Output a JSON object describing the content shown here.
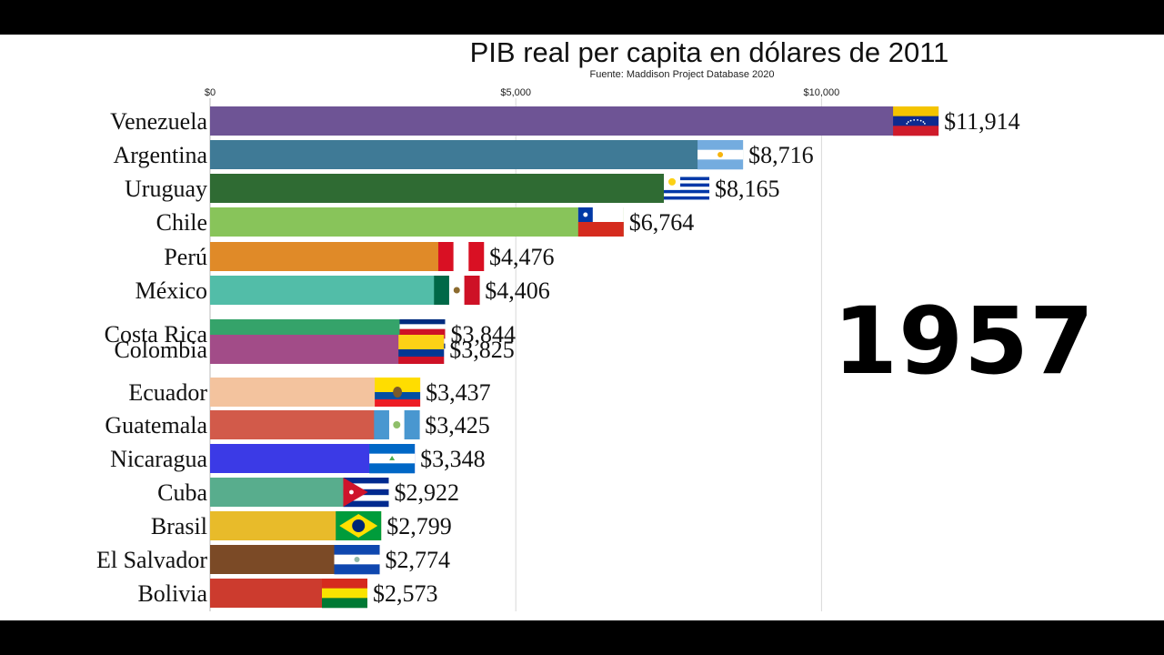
{
  "chart_data": {
    "type": "bar",
    "orientation": "horizontal",
    "title": "PIB real per capita en dólares de 2011",
    "subtitle": "Fuente: Maddison Project Database 2020",
    "year": "1957",
    "xlim": [
      0,
      12000
    ],
    "xticks": [
      {
        "value": 0,
        "label": "$0"
      },
      {
        "value": 5000,
        "label": "$5,000"
      },
      {
        "value": 10000,
        "label": "$10,000"
      }
    ],
    "grid": true,
    "bars": [
      {
        "category": "Venezuela",
        "value": 11914,
        "label": "$11,914",
        "color": "#6e5495",
        "flag": "venezuela"
      },
      {
        "category": "Argentina",
        "value": 8716,
        "label": "$8,716",
        "color": "#3f7a96",
        "flag": "argentina"
      },
      {
        "category": "Uruguay",
        "value": 8165,
        "label": "$8,165",
        "color": "#2f6b33",
        "flag": "uruguay"
      },
      {
        "category": "Chile",
        "value": 6764,
        "label": "$6,764",
        "color": "#88c45a",
        "flag": "chile"
      },
      {
        "category": "Perú",
        "value": 4476,
        "label": "$4,476",
        "color": "#e08a28",
        "flag": "peru"
      },
      {
        "category": "México",
        "value": 4406,
        "label": "$4,406",
        "color": "#52bda8",
        "flag": "mexico"
      },
      {
        "category": "Costa Rica",
        "value": 3844,
        "label": "$3,844",
        "color": "#35a36a",
        "flag": "costa-rica"
      },
      {
        "category": "Colombia",
        "value": 3825,
        "label": "$3,825",
        "color": "#a24c88",
        "flag": "colombia"
      },
      {
        "category": "Ecuador",
        "value": 3437,
        "label": "$3,437",
        "color": "#f3c39e",
        "flag": "ecuador"
      },
      {
        "category": "Guatemala",
        "value": 3425,
        "label": "$3,425",
        "color": "#d25a4a",
        "flag": "guatemala"
      },
      {
        "category": "Nicaragua",
        "value": 3348,
        "label": "$3,348",
        "color": "#3b3ae6",
        "flag": "nicaragua"
      },
      {
        "category": "Cuba",
        "value": 2922,
        "label": "$2,922",
        "color": "#58ad8d",
        "flag": "cuba"
      },
      {
        "category": "Brasil",
        "value": 2799,
        "label": "$2,799",
        "color": "#e8bb2a",
        "flag": "brazil"
      },
      {
        "category": "El Salvador",
        "value": 2774,
        "label": "$2,774",
        "color": "#7b4a26",
        "flag": "el-salvador"
      },
      {
        "category": "Bolivia",
        "value": 2573,
        "label": "$2,573",
        "color": "#cc3b2e",
        "flag": "bolivia"
      }
    ]
  }
}
